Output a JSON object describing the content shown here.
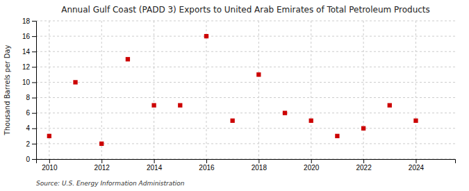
{
  "chart_data": {
    "type": "scatter",
    "title": "Annual Gulf Coast (PADD 3) Exports to United Arab Emirates of Total Petroleum Products",
    "ylabel": "Thousand Barrels per Day",
    "source": "Source: U.S. Energy Information Administration",
    "x": [
      2010,
      2011,
      2012,
      2013,
      2014,
      2015,
      2016,
      2017,
      2018,
      2019,
      2020,
      2021,
      2022,
      2023,
      2024
    ],
    "values": [
      3,
      10,
      2,
      13,
      7,
      7,
      16,
      5,
      11,
      6,
      5,
      3,
      4,
      7,
      5
    ],
    "color": "#cc0000",
    "marker": "square",
    "xlim": [
      2009.5,
      2025.5
    ],
    "ylim": [
      0,
      18
    ],
    "xticks": [
      2010,
      2012,
      2014,
      2016,
      2018,
      2020,
      2022,
      2024
    ],
    "yticks": [
      0,
      2,
      4,
      6,
      8,
      10,
      12,
      14,
      16,
      18
    ],
    "grid": true
  }
}
